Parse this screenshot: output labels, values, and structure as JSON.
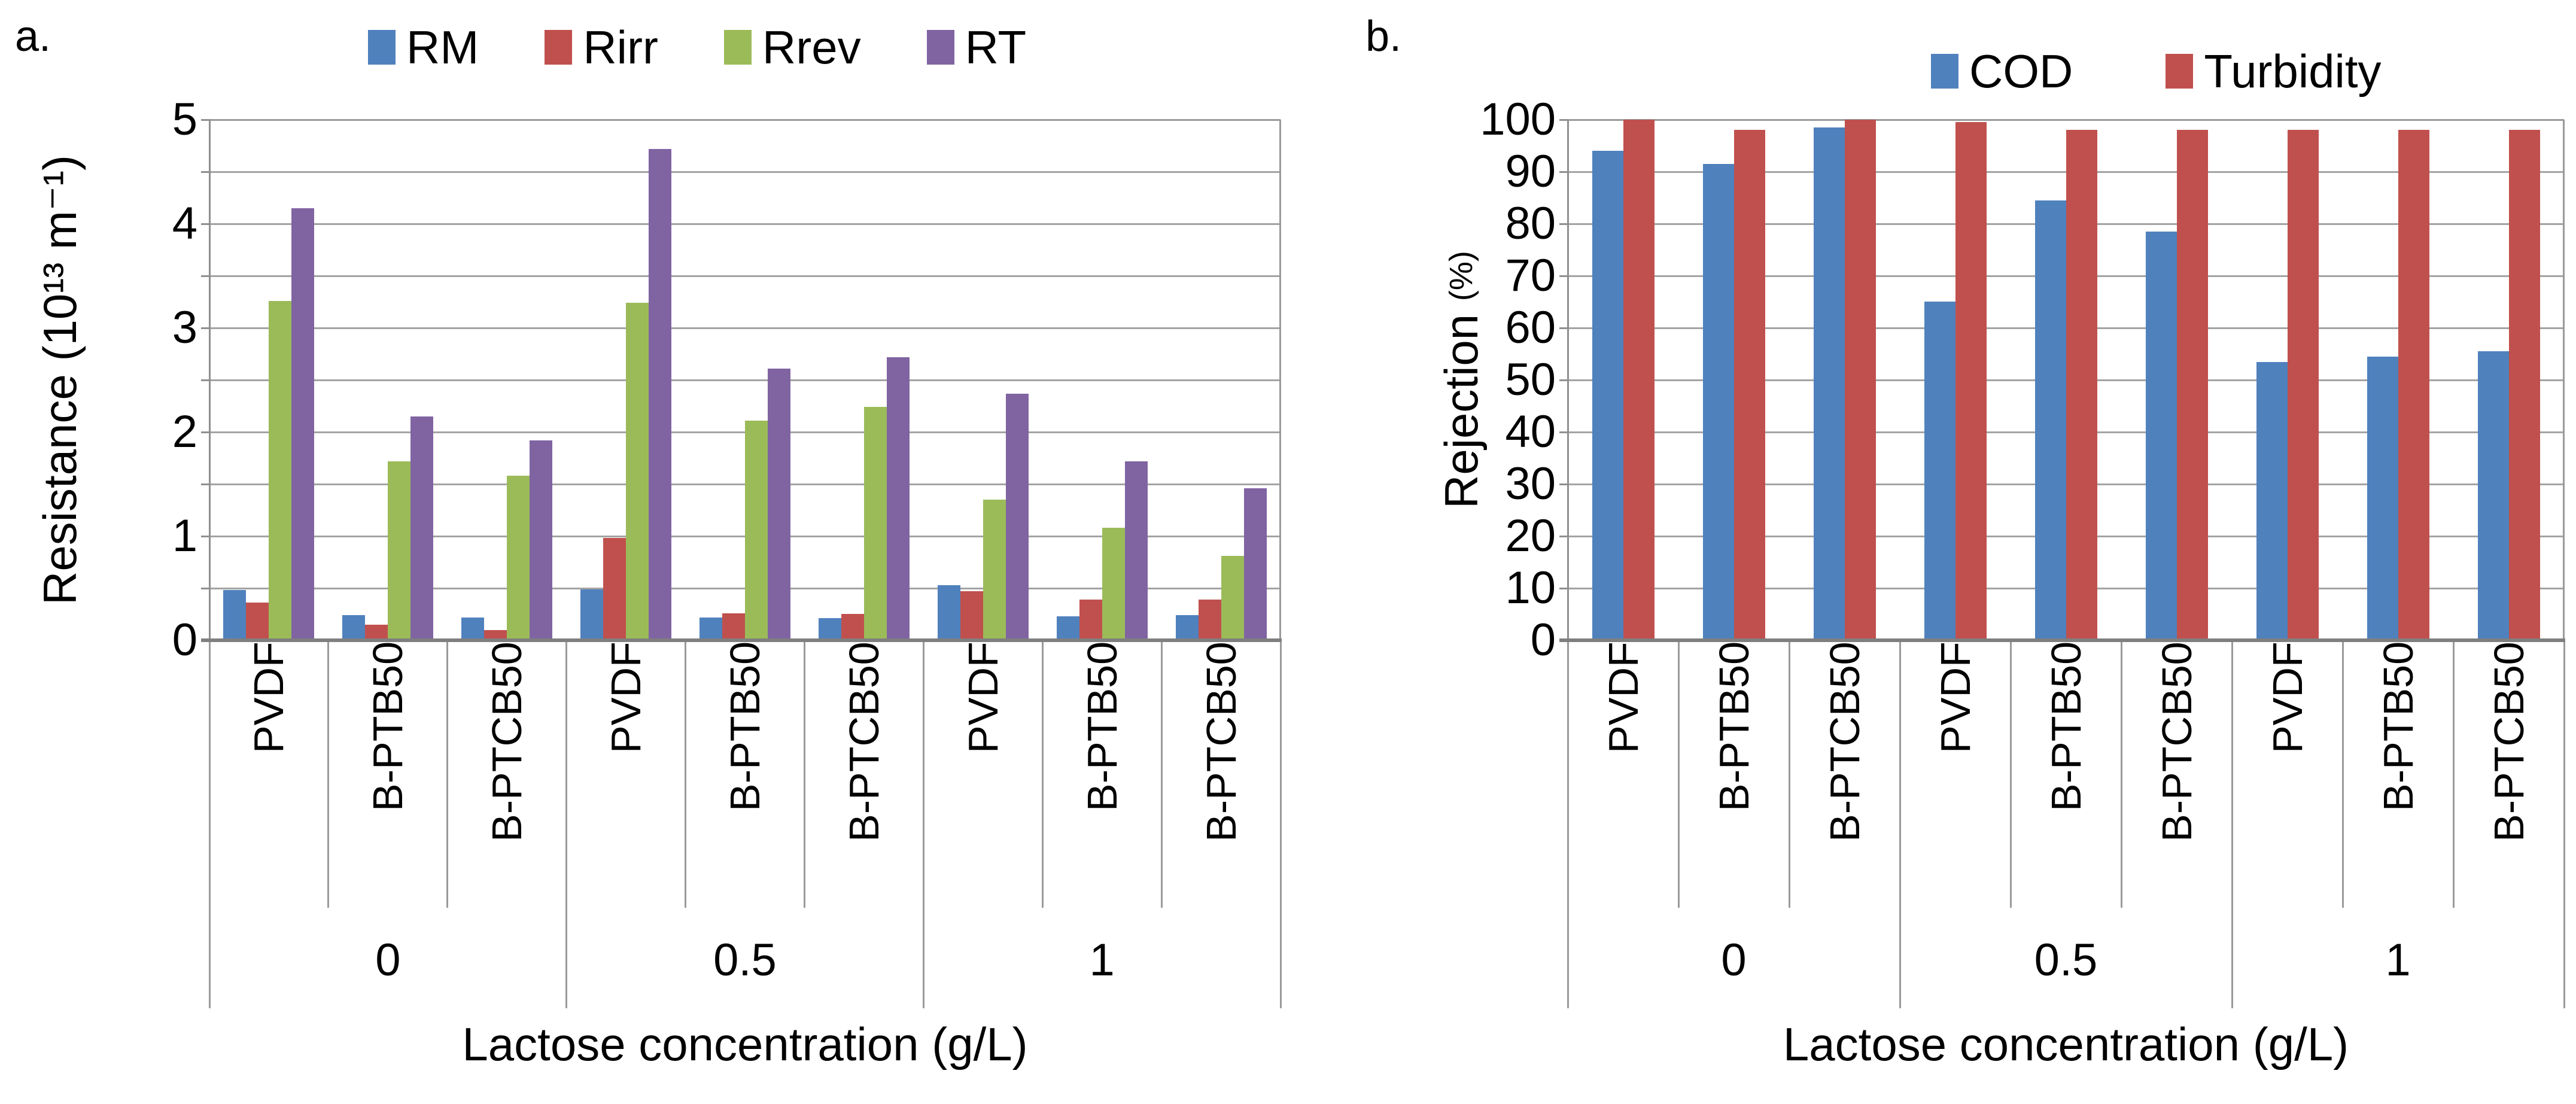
{
  "figure": {
    "description": "Two grouped bar charts comparing membranes at different lactose concentrations"
  },
  "panels": [
    {
      "label": "a.",
      "y_axis_title_main": "Resistance (10¹³ m⁻¹)",
      "y_axis_title_unit": "",
      "x_axis_title": "Lactose concentration (g/L)"
    },
    {
      "label": "b.",
      "y_axis_title_main": "Rejection ",
      "y_axis_title_unit": "(%)",
      "x_axis_title": "Lactose concentration (g/L)"
    }
  ],
  "chart_data": [
    {
      "type": "bar",
      "panel": "a",
      "title": "",
      "xlabel": "Lactose concentration (g/L)",
      "ylabel": "Resistance (10¹³ m⁻¹)",
      "ylim": [
        0,
        5
      ],
      "yticks": [
        0,
        1,
        2,
        3,
        4,
        5
      ],
      "gridline_step": 0.5,
      "grid": true,
      "legend_position": "top",
      "group_labels": [
        "0",
        "0.5",
        "1"
      ],
      "categories": [
        "PVDF",
        "B-PTB50",
        "B-PTCB50",
        "PVDF",
        "B-PTB50",
        "B-PTCB50",
        "PVDF",
        "B-PTB50",
        "B-PTCB50"
      ],
      "series": [
        {
          "name": "RM",
          "color": "#4F81BD",
          "values": [
            0.48,
            0.24,
            0.22,
            0.49,
            0.22,
            0.21,
            0.53,
            0.23,
            0.24
          ]
        },
        {
          "name": "Rirr",
          "color": "#C0504D",
          "values": [
            0.36,
            0.15,
            0.1,
            0.98,
            0.26,
            0.25,
            0.47,
            0.39,
            0.39
          ]
        },
        {
          "name": "Rrev",
          "color": "#9BBB59",
          "values": [
            3.26,
            1.72,
            1.58,
            3.24,
            2.11,
            2.24,
            1.35,
            1.08,
            0.81
          ]
        },
        {
          "name": "RT",
          "color": "#8064A2",
          "values": [
            4.15,
            2.15,
            1.92,
            4.72,
            2.61,
            2.72,
            2.37,
            1.72,
            1.46
          ]
        }
      ],
      "axis_color": "#808080",
      "grid_color": "#a3a3a3"
    },
    {
      "type": "bar",
      "panel": "b",
      "title": "",
      "xlabel": "Lactose concentration (g/L)",
      "ylabel": "Rejection (%)",
      "ylim": [
        0,
        100
      ],
      "yticks": [
        0,
        10,
        20,
        30,
        40,
        50,
        60,
        70,
        80,
        90,
        100
      ],
      "gridline_step": 10,
      "grid": true,
      "legend_position": "top",
      "group_labels": [
        "0",
        "0.5",
        "1"
      ],
      "categories": [
        "PVDF",
        "B-PTB50",
        "B-PTCB50",
        "PVDF",
        "B-PTB50",
        "B-PTCB50",
        "PVDF",
        "B-PTB50",
        "B-PTCB50"
      ],
      "series": [
        {
          "name": "COD",
          "color": "#4F81BD",
          "values": [
            94,
            91.5,
            98.5,
            65,
            84.5,
            78.5,
            53.5,
            54.5,
            55.5
          ]
        },
        {
          "name": "Turbidity",
          "color": "#C0504D",
          "values": [
            100,
            98,
            100,
            99.5,
            98,
            98,
            98,
            98,
            98
          ]
        }
      ],
      "axis_color": "#808080",
      "grid_color": "#a3a3a3"
    }
  ]
}
